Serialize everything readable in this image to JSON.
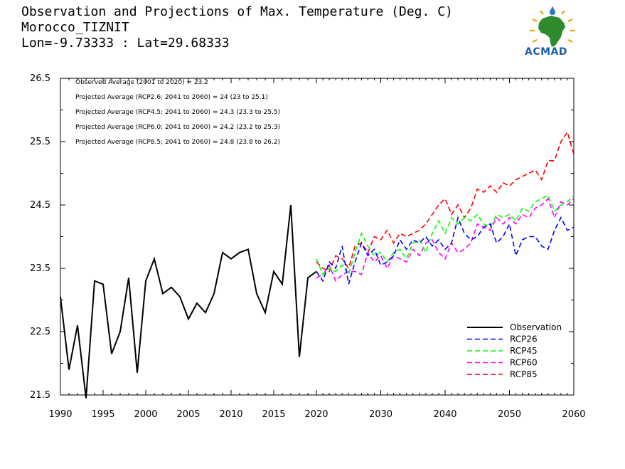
{
  "header": {
    "line1": "Observation and Projections of Max. Temperature (Deg. C)",
    "line2": "Morocco_TIZNIT",
    "line3": "Lon=-9.73333 : Lat=29.68333"
  },
  "logo": {
    "text": "ACMAD",
    "icon": "africa-map-logo-icon",
    "colors": {
      "africa": "#2e8b2e",
      "sun": "#f2a007",
      "drop": "#2a78c8",
      "text": "#1e5fa6"
    }
  },
  "chart_data": {
    "type": "line",
    "xlim": [
      1990,
      2060
    ],
    "ylim": [
      21.5,
      26.5
    ],
    "xticks": [
      "1990",
      "1995",
      "2000",
      "2005",
      "2010",
      "2015",
      "2020",
      "2030",
      "2040",
      "2050",
      "2060"
    ],
    "xtick_values": [
      1990,
      1995,
      2000,
      2005,
      2010,
      2015,
      2020,
      2030,
      2040,
      2050,
      2060
    ],
    "yticks": [
      "21.5",
      "22.5",
      "23.5",
      "24.5",
      "25.5",
      "26.5"
    ],
    "ytick_values": [
      21.5,
      22.5,
      23.5,
      24.5,
      25.5,
      26.5
    ],
    "annotations": [
      "Observed Average (2001 to 2020) = 23.2",
      "Projected Average (RCP2.6; 2041 to 2060) = 24 (23 to 25.1)",
      "Projected Average (RCP4.5; 2041 to 2060) = 24.3 (23.3 to 25.5)",
      "Projected Average (RCP6.0; 2041 to 2060) = 24.2 (23.2 to 25.3)",
      "Projected Average (RCP8.5; 2041 to 2060) = 24.8 (23.8 to 26.2)"
    ],
    "legend_position": "bottom-right",
    "series": [
      {
        "name": "Observation",
        "color": "#000000",
        "dash": "solid",
        "x": [
          1990,
          1991,
          1992,
          1993,
          1994,
          1995,
          1996,
          1997,
          1998,
          1999,
          2000,
          2001,
          2002,
          2003,
          2004,
          2005,
          2006,
          2007,
          2008,
          2009,
          2010,
          2011,
          2012,
          2013,
          2014,
          2015,
          2016,
          2017,
          2018,
          2019,
          2020
        ],
        "y": [
          23.05,
          21.9,
          22.6,
          21.45,
          23.3,
          23.25,
          22.15,
          22.5,
          23.35,
          21.85,
          23.3,
          23.65,
          23.1,
          23.2,
          23.05,
          22.7,
          22.95,
          22.8,
          23.1,
          23.75,
          23.65,
          23.75,
          23.8,
          23.1,
          22.8,
          23.45,
          23.25,
          24.5,
          22.1,
          23.35,
          23.45
        ]
      },
      {
        "name": "RCP26",
        "color": "#0000ff",
        "dash": "dashed",
        "x": [
          2020,
          2021,
          2022,
          2023,
          2024,
          2025,
          2026,
          2027,
          2028,
          2029,
          2030,
          2031,
          2032,
          2033,
          2034,
          2035,
          2036,
          2037,
          2038,
          2039,
          2040,
          2041,
          2042,
          2043,
          2044,
          2045,
          2046,
          2047,
          2048,
          2049,
          2050,
          2051,
          2052,
          2053,
          2054,
          2055,
          2056,
          2057,
          2058,
          2059,
          2060
        ],
        "y": [
          23.45,
          23.3,
          23.6,
          23.5,
          23.85,
          23.25,
          23.6,
          23.9,
          23.7,
          23.8,
          23.55,
          23.6,
          23.7,
          23.95,
          23.8,
          23.95,
          23.9,
          24.0,
          23.85,
          23.95,
          23.8,
          23.9,
          24.3,
          24.05,
          23.95,
          24.0,
          24.15,
          24.2,
          23.9,
          24.0,
          24.2,
          23.7,
          23.95,
          24.0,
          24.0,
          23.85,
          23.8,
          24.1,
          24.3,
          24.1,
          24.15
        ]
      },
      {
        "name": "RCP45",
        "color": "#00ff00",
        "dash": "dashed",
        "x": [
          2020,
          2021,
          2022,
          2023,
          2024,
          2025,
          2026,
          2027,
          2028,
          2029,
          2030,
          2031,
          2032,
          2033,
          2034,
          2035,
          2036,
          2037,
          2038,
          2039,
          2040,
          2041,
          2042,
          2043,
          2044,
          2045,
          2046,
          2047,
          2048,
          2049,
          2050,
          2051,
          2052,
          2053,
          2054,
          2055,
          2056,
          2057,
          2058,
          2059,
          2060
        ],
        "y": [
          23.65,
          23.4,
          23.5,
          23.45,
          23.55,
          23.4,
          23.75,
          24.05,
          23.85,
          23.7,
          23.75,
          23.6,
          23.75,
          23.8,
          23.65,
          23.9,
          23.95,
          23.75,
          24.05,
          24.25,
          24.05,
          24.3,
          24.2,
          24.3,
          24.25,
          24.35,
          24.2,
          24.15,
          24.35,
          24.3,
          24.35,
          24.25,
          24.45,
          24.4,
          24.55,
          24.6,
          24.65,
          24.4,
          24.5,
          24.55,
          24.65
        ]
      },
      {
        "name": "RCP60",
        "color": "#ff00ff",
        "dash": "dashed",
        "x": [
          2020,
          2021,
          2022,
          2023,
          2024,
          2025,
          2026,
          2027,
          2028,
          2029,
          2030,
          2031,
          2032,
          2033,
          2034,
          2035,
          2036,
          2037,
          2038,
          2039,
          2040,
          2041,
          2042,
          2043,
          2044,
          2045,
          2046,
          2047,
          2048,
          2049,
          2050,
          2051,
          2052,
          2053,
          2054,
          2055,
          2056,
          2057,
          2058,
          2059,
          2060
        ],
        "y": [
          23.35,
          23.4,
          23.55,
          23.3,
          23.4,
          23.45,
          23.45,
          23.4,
          23.75,
          23.6,
          23.7,
          23.5,
          23.7,
          23.65,
          23.6,
          23.8,
          23.7,
          23.9,
          23.95,
          23.75,
          23.65,
          23.9,
          23.75,
          23.8,
          23.9,
          24.2,
          24.15,
          24.1,
          24.3,
          24.2,
          24.3,
          24.2,
          24.35,
          24.3,
          24.45,
          24.5,
          24.6,
          24.3,
          24.55,
          24.5,
          24.6
        ]
      },
      {
        "name": "RCP85",
        "color": "#ff0000",
        "dash": "dashed",
        "x": [
          2020,
          2021,
          2022,
          2023,
          2024,
          2025,
          2026,
          2027,
          2028,
          2029,
          2030,
          2031,
          2032,
          2033,
          2034,
          2035,
          2036,
          2037,
          2038,
          2039,
          2040,
          2041,
          2042,
          2043,
          2044,
          2045,
          2046,
          2047,
          2048,
          2049,
          2050,
          2051,
          2052,
          2053,
          2054,
          2055,
          2056,
          2057,
          2058,
          2059,
          2060
        ],
        "y": [
          23.6,
          23.5,
          23.45,
          23.7,
          23.65,
          23.5,
          23.85,
          23.9,
          23.75,
          24.0,
          23.95,
          24.1,
          23.9,
          24.05,
          24.0,
          24.05,
          24.1,
          24.2,
          24.35,
          24.5,
          24.6,
          24.35,
          24.5,
          24.3,
          24.45,
          24.75,
          24.7,
          24.8,
          24.7,
          24.85,
          24.8,
          24.9,
          24.95,
          25.0,
          25.05,
          24.9,
          25.2,
          25.2,
          25.5,
          25.65,
          25.3
        ]
      }
    ]
  }
}
